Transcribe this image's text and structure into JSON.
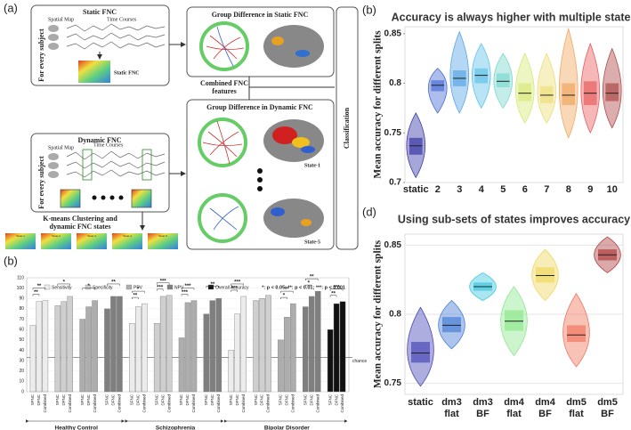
{
  "diagram": {
    "panel_label": "(a)",
    "static_box": {
      "title": "Static FNC",
      "spatial_map": "Spatial Map",
      "time_courses": "Time Courses",
      "side": "For every subject",
      "matrix_label": "Static FNC"
    },
    "dynamic_box": {
      "title": "Dynamic FNC",
      "spatial_map": "Spatial Map",
      "time_courses": "Time Courses",
      "side": "For every subject"
    },
    "kmeans": [
      "K-means Clustering and",
      "dynamic FNC states"
    ],
    "states": [
      "State 1",
      "State 2",
      "State 3",
      "State 4",
      "State 5"
    ],
    "static_group": "Group Difference in Static FNC",
    "combined": [
      "Combined FNC",
      "features"
    ],
    "dynamic_group": {
      "title": "Group Difference in Dynamic FNC",
      "first": "State-1",
      "last": "State-5"
    },
    "classification": "Classification"
  },
  "chart_data": [
    {
      "type": "violin",
      "panel_label": "(b)",
      "title": "Accuracy is always higher with multiple states",
      "y_label": "Mean accuracy for different splits",
      "categories": [
        "static",
        "2",
        "3",
        "4",
        "5",
        "6",
        "7",
        "8",
        "9",
        "10"
      ],
      "colors": [
        "#3a3aa8",
        "#4a6fd6",
        "#5aa7e6",
        "#62c3e8",
        "#7dd8d0",
        "#d8e87a",
        "#eede7a",
        "#f0a860",
        "#e86060",
        "#b04a4a"
      ],
      "min": [
        0.705,
        0.77,
        0.77,
        0.775,
        0.775,
        0.76,
        0.76,
        0.745,
        0.75,
        0.755
      ],
      "q1": [
        0.728,
        0.792,
        0.797,
        0.8,
        0.796,
        0.782,
        0.78,
        0.778,
        0.778,
        0.782
      ],
      "median": [
        0.737,
        0.798,
        0.805,
        0.808,
        0.802,
        0.79,
        0.788,
        0.788,
        0.79,
        0.79
      ],
      "q3": [
        0.745,
        0.803,
        0.813,
        0.815,
        0.81,
        0.8,
        0.797,
        0.8,
        0.802,
        0.8
      ],
      "max": [
        0.77,
        0.815,
        0.852,
        0.84,
        0.83,
        0.83,
        0.83,
        0.855,
        0.84,
        0.835
      ],
      "ylim": [
        0.7,
        0.857
      ],
      "yticks": [
        0.7,
        0.75,
        0.8,
        0.85
      ],
      "grid": false
    },
    {
      "type": "bar",
      "panel_label": "(b)",
      "categories": [
        "Healthy Control",
        "Schizophrenia",
        "Bipolar Disorder"
      ],
      "sub_labels": [
        "SFNC",
        "DFNC",
        "Combined"
      ],
      "series": [
        {
          "name": "Sensitivity",
          "color": "#ececec",
          "values": [
            [
              64,
              87,
              88
            ],
            [
              66,
              82,
              85
            ],
            [
              40,
              75,
              92
            ]
          ],
          "significance": [
            [
              "**",
              "**"
            ],
            [
              "*",
              "**"
            ],
            [
              "***",
              "***"
            ]
          ]
        },
        {
          "name": "Specificity",
          "color": "#cfcfcf",
          "values": [
            [
              83,
              87,
              92
            ],
            [
              66,
              92,
              93
            ],
            [
              88,
              90,
              93
            ]
          ],
          "significance": [
            [
              "*",
              null
            ],
            [
              "***",
              "***"
            ],
            [
              null,
              null
            ]
          ]
        },
        {
          "name": "PPV",
          "color": "#adadad",
          "values": [
            [
              70,
              82,
              88
            ],
            [
              52,
              86,
              88
            ],
            [
              50,
              72,
              85
            ]
          ],
          "significance": [
            [
              "*",
              null
            ],
            [
              "***",
              "***"
            ],
            [
              "**",
              "*"
            ]
          ]
        },
        {
          "name": "NPV",
          "color": "#7f7f7f",
          "values": [
            [
              80,
              92,
              92
            ],
            [
              75,
              88,
              90
            ],
            [
              82,
              92,
              97
            ]
          ],
          "significance": [
            [
              "**",
              null
            ],
            [
              "**",
              null
            ],
            [
              "**",
              "*"
            ]
          ]
        },
        {
          "name": "Overall Accuracy",
          "color": "#111111",
          "values": [
            null,
            null,
            [
              60,
              85,
              87
            ]
          ],
          "significance": [
            null,
            null,
            [
              "***",
              "**"
            ]
          ]
        }
      ],
      "significance_legend": "*: p < 0.05; **: p < 0.01; ***: p < 0.001",
      "reference_line": {
        "value": 33,
        "label": "chance"
      },
      "ylim": [
        0,
        110
      ],
      "yticks": [
        0,
        10,
        20,
        30,
        40,
        50,
        60,
        70,
        80,
        90,
        100,
        110
      ],
      "grid": true
    },
    {
      "type": "violin",
      "panel_label": "(d)",
      "title": "Using sub-sets of states improves accuracy",
      "y_label": "Mean accuracy for different splits",
      "categories": [
        "static",
        [
          "dm3",
          "flat"
        ],
        [
          "dm3",
          "BF"
        ],
        [
          "dm4",
          "flat"
        ],
        [
          "dm4",
          "BF"
        ],
        [
          "dm5",
          "flat"
        ],
        [
          "dm5",
          "BF"
        ]
      ],
      "colors": [
        "#4a4ab8",
        "#4a7fd6",
        "#40c8e0",
        "#90e890",
        "#f0d860",
        "#f07860",
        "#b04040"
      ],
      "min": [
        0.748,
        0.775,
        0.81,
        0.77,
        0.81,
        0.762,
        0.83
      ],
      "q1": [
        0.765,
        0.787,
        0.817,
        0.788,
        0.823,
        0.78,
        0.839
      ],
      "median": [
        0.772,
        0.792,
        0.82,
        0.795,
        0.828,
        0.785,
        0.843
      ],
      "q3": [
        0.78,
        0.798,
        0.823,
        0.803,
        0.834,
        0.792,
        0.847
      ],
      "max": [
        0.805,
        0.81,
        0.83,
        0.82,
        0.847,
        0.815,
        0.856
      ],
      "ylim": [
        0.742,
        0.858
      ],
      "yticks": [
        0.75,
        0.8,
        0.85
      ],
      "grid": true
    }
  ]
}
